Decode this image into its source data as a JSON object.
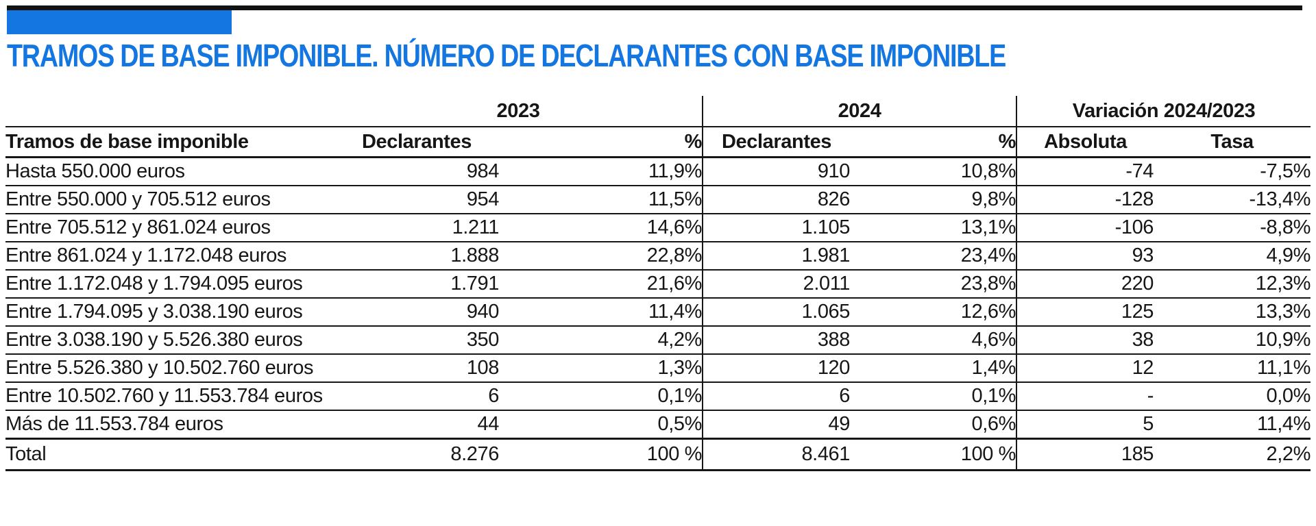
{
  "title": "TRAMOS DE BASE IMPONIBLE. NÚMERO DE DECLARANTES CON BASE IMPONIBLE",
  "colors": {
    "accent_blue": "#1476e0",
    "bar_black": "#121212",
    "text": "#161616"
  },
  "table": {
    "group_headers": {
      "y2023": "2023",
      "y2024": "2024",
      "variation": "Variación 2024/2023"
    },
    "column_headers": {
      "label": "Tramos de base imponible",
      "declarantes_2023": "Declarantes",
      "pct_2023": "%",
      "declarantes_2024": "Declarantes",
      "pct_2024": "%",
      "absoluta": "Absoluta",
      "tasa": "Tasa"
    },
    "rows": [
      {
        "label": "Hasta 550.000 euros",
        "d2023": "984",
        "p2023": "11,9%",
        "d2024": "910",
        "p2024": "10,8%",
        "abs": "-74",
        "tasa": "-7,5%"
      },
      {
        "label": "Entre 550.000 y 705.512 euros",
        "d2023": "954",
        "p2023": "11,5%",
        "d2024": "826",
        "p2024": "9,8%",
        "abs": "-128",
        "tasa": "-13,4%"
      },
      {
        "label": "Entre 705.512 y 861.024 euros",
        "d2023": "1.211",
        "p2023": "14,6%",
        "d2024": "1.105",
        "p2024": "13,1%",
        "abs": "-106",
        "tasa": "-8,8%"
      },
      {
        "label": "Entre 861.024 y 1.172.048 euros",
        "d2023": "1.888",
        "p2023": "22,8%",
        "d2024": "1.981",
        "p2024": "23,4%",
        "abs": "93",
        "tasa": "4,9%"
      },
      {
        "label": "Entre 1.172.048 y 1.794.095 euros",
        "d2023": "1.791",
        "p2023": "21,6%",
        "d2024": "2.011",
        "p2024": "23,8%",
        "abs": "220",
        "tasa": "12,3%"
      },
      {
        "label": "Entre 1.794.095 y 3.038.190 euros",
        "d2023": "940",
        "p2023": "11,4%",
        "d2024": "1.065",
        "p2024": "12,6%",
        "abs": "125",
        "tasa": "13,3%"
      },
      {
        "label": "Entre 3.038.190 y 5.526.380 euros",
        "d2023": "350",
        "p2023": "4,2%",
        "d2024": "388",
        "p2024": "4,6%",
        "abs": "38",
        "tasa": "10,9%"
      },
      {
        "label": "Entre 5.526.380 y 10.502.760 euros",
        "d2023": "108",
        "p2023": "1,3%",
        "d2024": "120",
        "p2024": "1,4%",
        "abs": "12",
        "tasa": "11,1%"
      },
      {
        "label": "Entre 10.502.760 y 11.553.784 euros",
        "d2023": "6",
        "p2023": "0,1%",
        "d2024": "6",
        "p2024": "0,1%",
        "abs": "-",
        "tasa": "0,0%"
      },
      {
        "label": "Más de 11.553.784 euros",
        "d2023": "44",
        "p2023": "0,5%",
        "d2024": "49",
        "p2024": "0,6%",
        "abs": "5",
        "tasa": "11,4%"
      }
    ],
    "total_row": {
      "label": "Total",
      "d2023": "8.276",
      "p2023": "100 %",
      "d2024": "8.461",
      "p2024": "100 %",
      "abs": "185",
      "tasa": "2,2%"
    }
  },
  "chart_data": {
    "type": "table",
    "title": "TRAMOS DE BASE IMPONIBLE. NÚMERO DE DECLARANTES CON BASE IMPONIBLE",
    "column_groups": [
      "",
      "2023",
      "2023",
      "2024",
      "2024",
      "Variación 2024/2023",
      "Variación 2024/2023"
    ],
    "columns": [
      "Tramos de base imponible",
      "Declarantes 2023",
      "% 2023",
      "Declarantes 2024",
      "% 2024",
      "Variación absoluta",
      "Variación tasa"
    ],
    "rows": [
      [
        "Hasta 550.000 euros",
        984,
        "11,9%",
        910,
        "10,8%",
        -74,
        "-7,5%"
      ],
      [
        "Entre 550.000 y 705.512 euros",
        954,
        "11,5%",
        826,
        "9,8%",
        -128,
        "-13,4%"
      ],
      [
        "Entre 705.512 y 861.024 euros",
        1211,
        "14,6%",
        1105,
        "13,1%",
        -106,
        "-8,8%"
      ],
      [
        "Entre 861.024 y 1.172.048 euros",
        1888,
        "22,8%",
        1981,
        "23,4%",
        93,
        "4,9%"
      ],
      [
        "Entre 1.172.048 y 1.794.095 euros",
        1791,
        "21,6%",
        2011,
        "23,8%",
        220,
        "12,3%"
      ],
      [
        "Entre 1.794.095 y 3.038.190 euros",
        940,
        "11,4%",
        1065,
        "12,6%",
        125,
        "13,3%"
      ],
      [
        "Entre 3.038.190 y 5.526.380 euros",
        350,
        "4,2%",
        388,
        "4,6%",
        38,
        "10,9%"
      ],
      [
        "Entre 5.526.380 y 10.502.760 euros",
        108,
        "1,3%",
        120,
        "1,4%",
        12,
        "11,1%"
      ],
      [
        "Entre 10.502.760 y 11.553.784 euros",
        6,
        "0,1%",
        6,
        "0,1%",
        "-",
        "0,0%"
      ],
      [
        "Más de 11.553.784 euros",
        44,
        "0,5%",
        49,
        "0,6%",
        5,
        "11,4%"
      ]
    ],
    "total": [
      "Total",
      8276,
      "100 %",
      8461,
      "100 %",
      185,
      "2,2%"
    ]
  }
}
